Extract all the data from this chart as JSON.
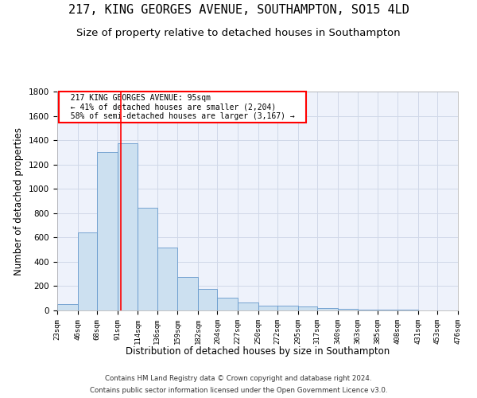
{
  "title": "217, KING GEORGES AVENUE, SOUTHAMPTON, SO15 4LD",
  "subtitle": "Size of property relative to detached houses in Southampton",
  "xlabel": "Distribution of detached houses by size in Southampton",
  "ylabel": "Number of detached properties",
  "footer_line1": "Contains HM Land Registry data © Crown copyright and database right 2024.",
  "footer_line2": "Contains public sector information licensed under the Open Government Licence v3.0.",
  "annotation_line1": "217 KING GEORGES AVENUE: 95sqm",
  "annotation_line2": "← 41% of detached houses are smaller (2,204)",
  "annotation_line3": "58% of semi-detached houses are larger (3,167) →",
  "bar_color": "#cce0f0",
  "bar_edge_color": "#6699cc",
  "vline_x": 95,
  "vline_color": "red",
  "bin_edges": [
    23,
    46,
    68,
    91,
    114,
    136,
    159,
    182,
    204,
    227,
    250,
    272,
    295,
    317,
    340,
    363,
    385,
    408,
    431,
    453,
    476
  ],
  "bar_heights": [
    50,
    640,
    1300,
    1375,
    845,
    520,
    275,
    175,
    105,
    65,
    38,
    38,
    30,
    18,
    10,
    8,
    5,
    5,
    2,
    2
  ],
  "ylim": [
    0,
    1800
  ],
  "yticks": [
    0,
    200,
    400,
    600,
    800,
    1000,
    1200,
    1400,
    1600,
    1800
  ],
  "grid_color": "#d0d8e8",
  "bg_color": "#eef2fb",
  "title_fontsize": 11,
  "subtitle_fontsize": 9.5
}
